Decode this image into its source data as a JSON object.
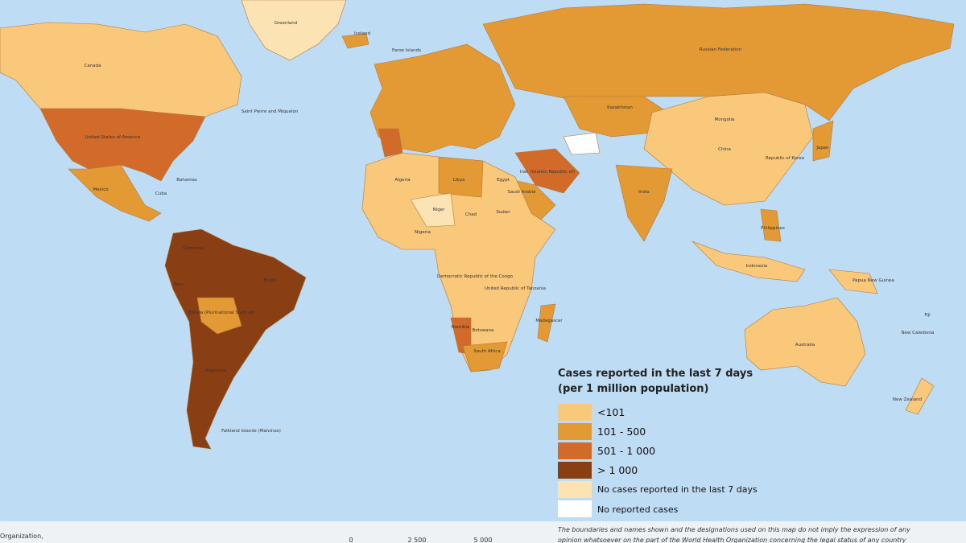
{
  "map_labels": [
    "Greenland",
    "Iceland",
    "Canada",
    "United States of America",
    "Mexico",
    "Cuba",
    "Bahamas",
    "Faroe Islands",
    "Saint Pierre and Miquelon",
    "Brazil",
    "Argentina",
    "Peru",
    "Bolivia (Plurinational State of)",
    "Colombia",
    "Falkland Islands (Malvinas)",
    "Russian Federation",
    "Kazakhstan",
    "Mongolia",
    "China",
    "India",
    "Japan",
    "Republic of Korea",
    "Iran (Islamic Republic of)",
    "Saudi Arabia",
    "Algeria",
    "Libya",
    "Niger",
    "Chad",
    "Sudan",
    "Egypt",
    "Nigeria",
    "Democratic Republic of the Congo",
    "United Republic of Tanzania",
    "Namibia",
    "Botswana",
    "South Africa",
    "Madagascar",
    "Indonesia",
    "Philippines",
    "Papua New Guinea",
    "Australia",
    "New Caledonia",
    "New Zealand",
    "Fiji"
  ],
  "legend": {
    "title": [
      "Cases reported in the last 7 days",
      "(per 1 million population)"
    ],
    "items": [
      "<101",
      "101 - 500",
      "501 - 1 000",
      "> 1 000",
      "No cases reported in the last 7 days",
      "No reported cases"
    ]
  },
  "footer": {
    "left": "Organization,",
    "scale": [
      "0",
      "2 500",
      "5 000"
    ],
    "disclaimer": [
      "The boundaries and names shown and the designations used on this map do not imply the expression of any",
      "opinion whatsoever on the part of the World Health Organization concerning the legal status of any country"
    ]
  }
}
